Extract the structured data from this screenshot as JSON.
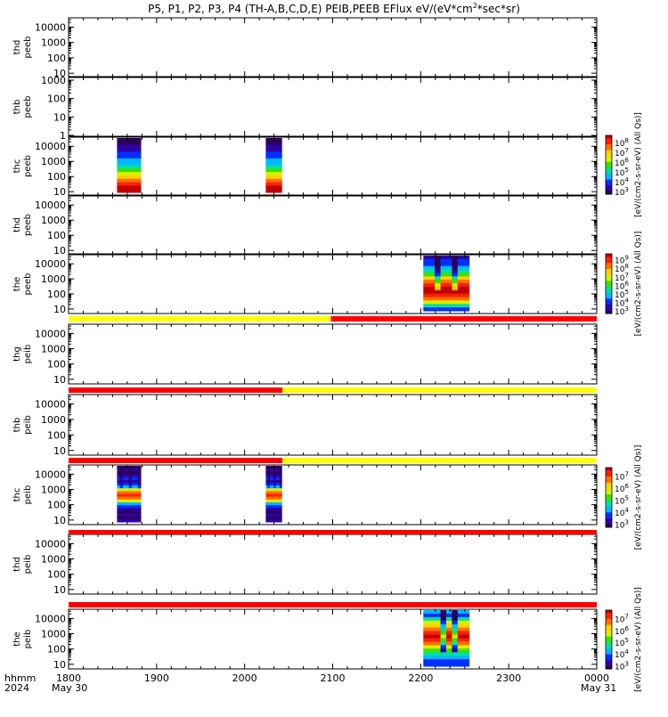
{
  "title": "P5, P1, P2, P3, P4 (TH-A,B,C,D,E) PEIB,PEEB EFlux eV/(eV*cm2*sec*sr)",
  "title_parts": {
    "prefix": "P5, P1, P2, P3, P4 (TH-A,B,C,D,E) PEIB,PEEB EFlux eV/(eV*cm",
    "sup": "2",
    "suffix": "*sec*sr)"
  },
  "colors": {
    "spectrogram_scale": [
      "#2a0058",
      "#3000a8",
      "#0030ff",
      "#00b8ff",
      "#00e0a0",
      "#40e000",
      "#d8f000",
      "#ffd000",
      "#ff7000",
      "#ff2000",
      "#c00000"
    ],
    "bar_yellow": "#ffff00",
    "bar_red": "#ff0000"
  },
  "chart_data": {
    "type": "heatmap",
    "x_axis": {
      "range": [
        "1800",
        "0000"
      ],
      "ticks": [
        "1800",
        "1900",
        "2000",
        "2100",
        "2200",
        "2300",
        "0000"
      ],
      "ticks_hours": [
        0,
        1,
        2,
        3,
        4,
        5,
        6
      ],
      "row_label": "hhmm",
      "year": "2024",
      "start_date": "May 30",
      "end_date": "May 31"
    },
    "panels": [
      {
        "ylabel1": "thd",
        "ylabel2": "peeb",
        "ylog": [
          6,
          40000
        ],
        "yticks": [
          "10",
          "100",
          "1000",
          "10000"
        ],
        "ytick_values": [
          10,
          100,
          1000,
          10000
        ],
        "blocks": []
      },
      {
        "ylabel1": "thb",
        "ylabel2": "peeb",
        "ylog": [
          0.9,
          1400
        ],
        "yticks": [
          "1",
          "10",
          "100",
          "1000"
        ],
        "ytick_values": [
          1,
          10,
          100,
          1000
        ],
        "blocks": []
      },
      {
        "ylabel1": "thc",
        "ylabel2": "peeb",
        "ylog": [
          6,
          40000
        ],
        "yticks": [
          "10",
          "100",
          "1000",
          "10000"
        ],
        "ytick_values": [
          10,
          100,
          1000,
          10000
        ],
        "blocks": [
          {
            "x_start_h": 0.55,
            "x_end_h": 0.82,
            "profile": "thc_peeb"
          },
          {
            "x_start_h": 2.24,
            "x_end_h": 2.42,
            "profile": "thc_peeb"
          }
        ],
        "colorbar": {
          "label": "[eV/(cm2-s-sr-eV) (All Qs)]",
          "ticks": [
            "3",
            "4",
            "5",
            "6",
            "7",
            "8"
          ]
        }
      },
      {
        "ylabel1": "thd",
        "ylabel2": "peeb",
        "ylog": [
          6,
          40000
        ],
        "yticks": [
          "10",
          "100",
          "1000",
          "10000"
        ],
        "ytick_values": [
          10,
          100,
          1000,
          10000
        ],
        "blocks": []
      },
      {
        "ylabel1": "the",
        "ylabel2": "peeb",
        "ylog": [
          5,
          40000
        ],
        "yticks": [
          "10",
          "100",
          "1000",
          "10000"
        ],
        "ytick_values": [
          10,
          100,
          1000,
          10000
        ],
        "blocks": [
          {
            "x_start_h": 4.03,
            "x_end_h": 4.55,
            "profile": "the_peeb"
          }
        ],
        "colorbar": {
          "label": "[eV/(cm2-s-sr-eV) (All Qs)]",
          "ticks": [
            "3",
            "4",
            "5",
            "6",
            "7",
            "8",
            "9"
          ]
        }
      },
      {
        "ylabel1": "thg",
        "ylabel2": "peib",
        "ylog": [
          5,
          40000
        ],
        "yticks": [
          "10",
          "100",
          "1000",
          "10000"
        ],
        "ytick_values": [
          10,
          100,
          1000,
          10000
        ],
        "blocks": []
      },
      {
        "ylabel1": "thb",
        "ylabel2": "peib",
        "ylog": [
          5,
          40000
        ],
        "yticks": [
          "10",
          "100",
          "1000",
          "10000"
        ],
        "ytick_values": [
          10,
          100,
          1000,
          10000
        ],
        "blocks": []
      },
      {
        "ylabel1": "thc",
        "ylabel2": "peib",
        "ylog": [
          5,
          40000
        ],
        "yticks": [
          "10",
          "100",
          "1000",
          "10000"
        ],
        "ytick_values": [
          10,
          100,
          1000,
          10000
        ],
        "blocks": [
          {
            "x_start_h": 0.55,
            "x_end_h": 0.82,
            "profile": "thc_peib"
          },
          {
            "x_start_h": 2.24,
            "x_end_h": 2.42,
            "profile": "thc_peib"
          }
        ],
        "colorbar": {
          "label": "[eV/(cm2-s-sr-eV) (All Qs)]",
          "ticks": [
            "3",
            "4",
            "5",
            "6",
            "7"
          ]
        }
      },
      {
        "ylabel1": "thd",
        "ylabel2": "peib",
        "ylog": [
          5,
          40000
        ],
        "yticks": [
          "10",
          "100",
          "1000",
          "10000"
        ],
        "ytick_values": [
          10,
          100,
          1000,
          10000
        ],
        "blocks": []
      },
      {
        "ylabel1": "the",
        "ylabel2": "peib",
        "ylog": [
          5,
          40000
        ],
        "yticks": [
          "10",
          "100",
          "1000",
          "10000"
        ],
        "ytick_values": [
          10,
          100,
          1000,
          10000
        ],
        "blocks": [
          {
            "x_start_h": 4.03,
            "x_end_h": 4.55,
            "profile": "the_peib"
          }
        ],
        "colorbar": {
          "label": "[eV/(cm2-s-sr-eV) (All Qs)]",
          "ticks": [
            "3",
            "4",
            "5",
            "6",
            "7"
          ]
        }
      }
    ],
    "status_bars": [
      {
        "segments": [
          {
            "x_start_h": 0,
            "x_end_h": 2.98,
            "color": "yellow"
          },
          {
            "x_start_h": 2.98,
            "x_end_h": 6,
            "color": "red"
          }
        ]
      },
      {
        "segments": [
          {
            "x_start_h": 0,
            "x_end_h": 2.43,
            "color": "red"
          },
          {
            "x_start_h": 2.43,
            "x_end_h": 6,
            "color": "yellow"
          }
        ]
      },
      {
        "segments": [
          {
            "x_start_h": 0,
            "x_end_h": 2.43,
            "color": "red"
          },
          {
            "x_start_h": 2.43,
            "x_end_h": 6,
            "color": "yellow"
          }
        ]
      },
      {
        "segments": [
          {
            "x_start_h": 0,
            "x_end_h": 6,
            "color": "red"
          }
        ]
      },
      {
        "segments": [
          {
            "x_start_h": 0,
            "x_end_h": 6,
            "color": "red"
          }
        ]
      }
    ]
  }
}
